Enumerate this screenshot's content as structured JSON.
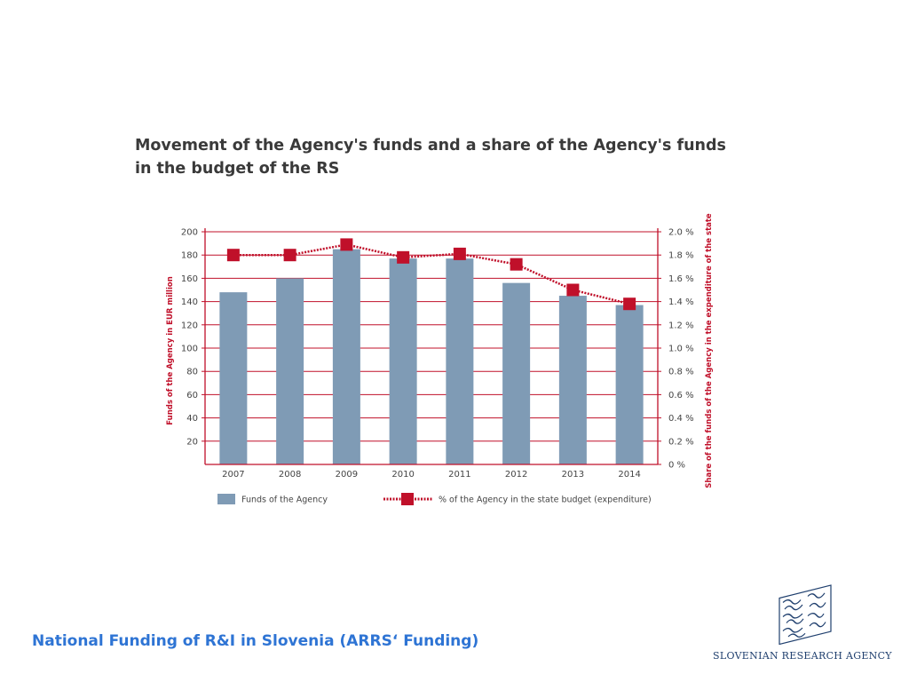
{
  "chart_title": "Movement of the Agency's funds and a share of the Agency's funds in the budget of the RS",
  "footer_title": "National Funding of R&I in Slovenia (ARRS‘ Funding)",
  "agency_name": "SLOVENIAN RESEARCH AGENCY",
  "logo_icon": "arrs-logo-icon",
  "colors": {
    "bar": "#7f9bb5",
    "line": "#c0102a",
    "grid": "#c0102a",
    "title": "#3a3a3a",
    "footer": "#2e74d4",
    "agency": "#1f3f6e"
  },
  "chart_data": {
    "type": "bar",
    "categories": [
      "2007",
      "2008",
      "2009",
      "2010",
      "2011",
      "2012",
      "2013",
      "2014"
    ],
    "series": [
      {
        "name": "Funds of the Agency",
        "type": "bar",
        "axis": "left",
        "values": [
          148,
          160,
          185,
          177,
          177,
          156,
          145,
          137
        ]
      },
      {
        "name": "% of the Agency in the state budget (expenditure)",
        "type": "line",
        "axis": "right",
        "values": [
          1.8,
          1.8,
          1.89,
          1.78,
          1.81,
          1.72,
          1.5,
          1.38
        ]
      }
    ],
    "ylabel": "Funds of the Agency in EUR million",
    "y2label": "Share of the funds of the Agency in the expenditure of the state",
    "ylim": [
      0,
      200
    ],
    "y2lim": [
      0,
      2.0
    ],
    "y_ticks": [
      "200",
      "180",
      "160",
      "140",
      "120",
      "100",
      "80",
      "60",
      "40",
      "20"
    ],
    "y2_ticks": [
      "2.0 %",
      "1.8 %",
      "1.6 %",
      "1.4 %",
      "1.2 %",
      "1.0 %",
      "0.8 %",
      "0.6 %",
      "0.4 %",
      "0.2 %",
      "0 %"
    ],
    "grid": true,
    "legend_position": "bottom"
  }
}
